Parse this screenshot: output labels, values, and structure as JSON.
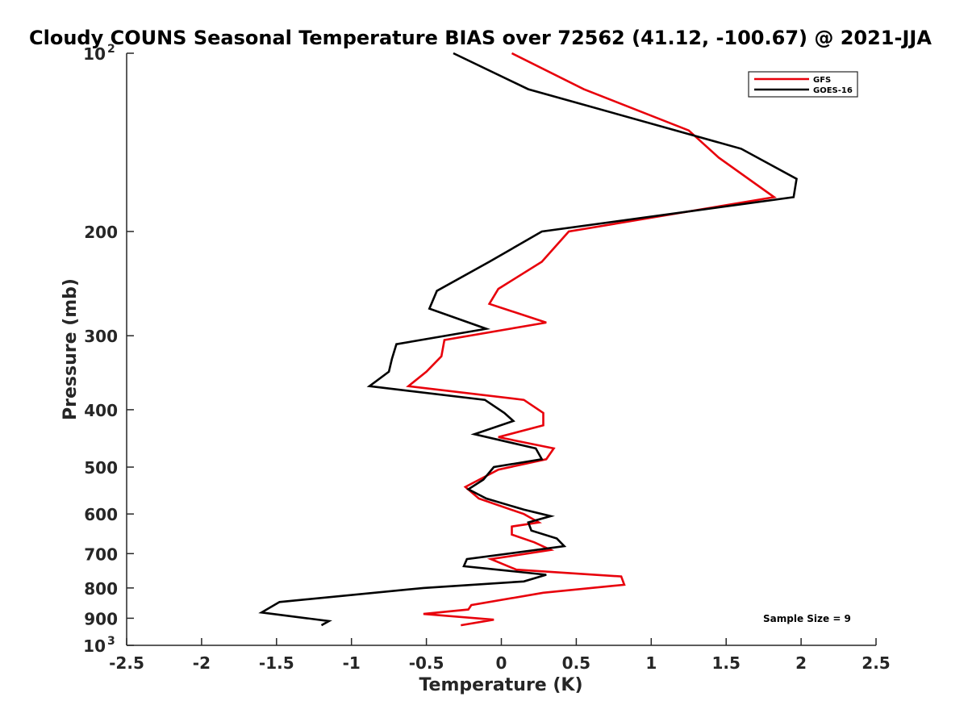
{
  "chart_data": {
    "type": "line",
    "title": "Cloudy COUNS Seasonal Temperature BIAS over 72562 (41.12, -100.67) @ 2021-JJA",
    "xlabel": "Temperature (K)",
    "ylabel": "Pressure (mb)",
    "xlim": [
      -2.5,
      2.5
    ],
    "ylim": [
      100,
      1000
    ],
    "y_scale": "log",
    "y_reversed": true,
    "grid": false,
    "legend_position": "top-right",
    "x_ticks": [
      -2.5,
      -2,
      -1.5,
      -1,
      -0.5,
      0,
      0.5,
      1,
      1.5,
      2,
      2.5
    ],
    "x_tick_labels": [
      "-2.5",
      "-2",
      "-1.5",
      "-1",
      "-0.5",
      "0",
      "0.5",
      "1",
      "1.5",
      "2",
      "2.5"
    ],
    "y_ticks": [
      {
        "value": 100,
        "label": "10",
        "sup": "2"
      },
      {
        "value": 200,
        "label": "200"
      },
      {
        "value": 300,
        "label": "300"
      },
      {
        "value": 400,
        "label": "400"
      },
      {
        "value": 500,
        "label": "500"
      },
      {
        "value": 600,
        "label": "600"
      },
      {
        "value": 700,
        "label": "700"
      },
      {
        "value": 800,
        "label": "800"
      },
      {
        "value": 900,
        "label": "900"
      },
      {
        "value": 1000,
        "label": "10",
        "sup": "3"
      }
    ],
    "annotation": "Sample Size = 9",
    "series": [
      {
        "name": "GFS",
        "color": "#e8000b",
        "points": [
          [
            0.07,
            100
          ],
          [
            0.55,
            115
          ],
          [
            1.25,
            135
          ],
          [
            1.45,
            150
          ],
          [
            1.82,
            175
          ],
          [
            0.45,
            200
          ],
          [
            0.27,
            225
          ],
          [
            -0.02,
            250
          ],
          [
            -0.08,
            265
          ],
          [
            0.3,
            285
          ],
          [
            -0.38,
            305
          ],
          [
            -0.4,
            325
          ],
          [
            -0.5,
            345
          ],
          [
            -0.62,
            365
          ],
          [
            0.15,
            385
          ],
          [
            0.28,
            405
          ],
          [
            0.28,
            425
          ],
          [
            -0.02,
            445
          ],
          [
            0.35,
            465
          ],
          [
            0.3,
            485
          ],
          [
            -0.02,
            505
          ],
          [
            -0.24,
            540
          ],
          [
            -0.15,
            565
          ],
          [
            0.15,
            600
          ],
          [
            0.25,
            620
          ],
          [
            0.07,
            630
          ],
          [
            0.07,
            650
          ],
          [
            0.22,
            670
          ],
          [
            0.33,
            690
          ],
          [
            -0.07,
            715
          ],
          [
            0.1,
            745
          ],
          [
            0.8,
            765
          ],
          [
            0.82,
            790
          ],
          [
            0.28,
            815
          ],
          [
            -0.2,
            855
          ],
          [
            -0.22,
            870
          ],
          [
            -0.52,
            885
          ],
          [
            -0.05,
            905
          ],
          [
            -0.27,
            925
          ]
        ]
      },
      {
        "name": "GOES-16",
        "color": "#000000",
        "points": [
          [
            -0.32,
            100
          ],
          [
            0.18,
            115
          ],
          [
            1.6,
            145
          ],
          [
            1.97,
            163
          ],
          [
            1.95,
            175
          ],
          [
            0.27,
            200
          ],
          [
            -0.08,
            225
          ],
          [
            -0.43,
            252
          ],
          [
            -0.48,
            270
          ],
          [
            -0.1,
            292
          ],
          [
            -0.7,
            310
          ],
          [
            -0.73,
            328
          ],
          [
            -0.75,
            345
          ],
          [
            -0.88,
            365
          ],
          [
            -0.11,
            385
          ],
          [
            0.02,
            405
          ],
          [
            0.08,
            418
          ],
          [
            -0.18,
            440
          ],
          [
            0.23,
            465
          ],
          [
            0.27,
            485
          ],
          [
            -0.05,
            500
          ],
          [
            -0.12,
            525
          ],
          [
            -0.22,
            545
          ],
          [
            -0.1,
            565
          ],
          [
            0.15,
            590
          ],
          [
            0.33,
            605
          ],
          [
            0.18,
            620
          ],
          [
            0.2,
            640
          ],
          [
            0.37,
            660
          ],
          [
            0.42,
            680
          ],
          [
            -0.23,
            715
          ],
          [
            -0.25,
            735
          ],
          [
            0.3,
            760
          ],
          [
            0.15,
            780
          ],
          [
            -0.52,
            800
          ],
          [
            -1.48,
            845
          ],
          [
            -1.6,
            880
          ],
          [
            -1.15,
            910
          ],
          [
            -1.2,
            925
          ]
        ]
      }
    ]
  }
}
